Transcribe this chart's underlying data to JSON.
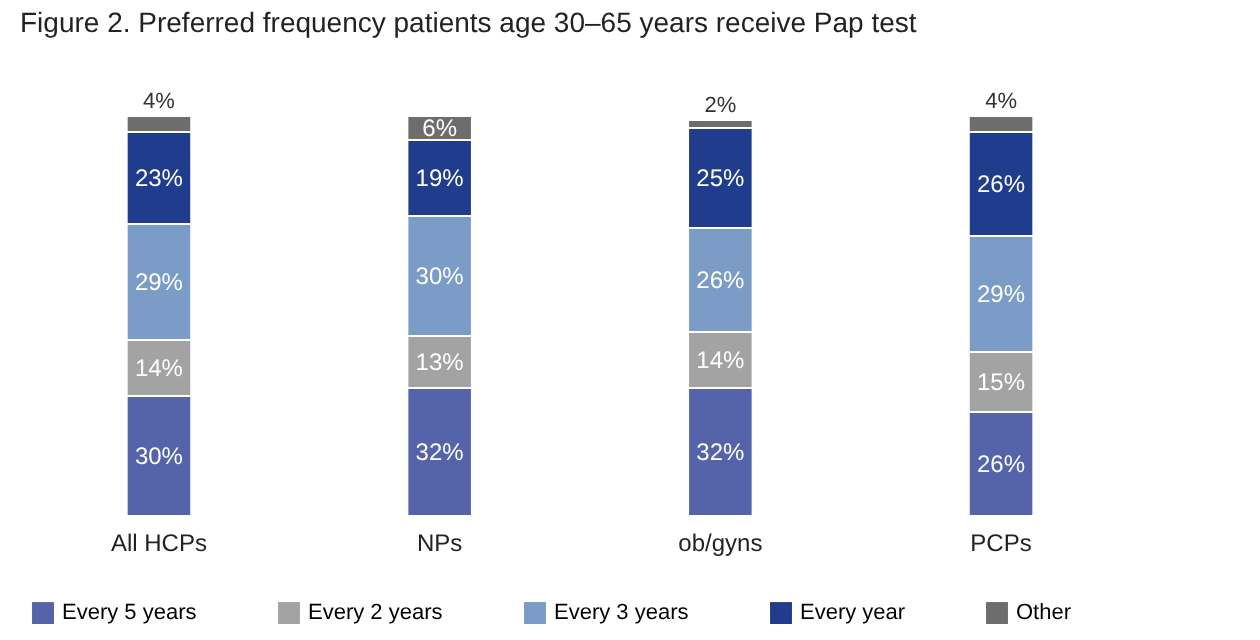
{
  "chart_data": {
    "type": "bar",
    "stacked": true,
    "title": "Figure 2. Preferred frequency patients age 30–65 years receive Pap test",
    "categories": [
      "All HCPs",
      "NPs",
      "ob/gyns",
      "PCPs"
    ],
    "series": [
      {
        "name": "Every 5 years",
        "color": "#5563ab",
        "values": [
          30,
          32,
          32,
          26
        ],
        "value_labels": [
          "30%",
          "32%",
          "32%",
          "26%"
        ]
      },
      {
        "name": "Every 2 years",
        "color": "#a3a3a3",
        "values": [
          14,
          13,
          14,
          15
        ],
        "value_labels": [
          "14%",
          "13%",
          "14%",
          "15%"
        ]
      },
      {
        "name": "Every 3 years",
        "color": "#7a9cc6",
        "values": [
          29,
          30,
          26,
          29
        ],
        "value_labels": [
          "29%",
          "30%",
          "26%",
          "29%"
        ]
      },
      {
        "name": "Every year",
        "color": "#1f3d8c",
        "values": [
          23,
          19,
          25,
          26
        ],
        "value_labels": [
          "23%",
          "19%",
          "25%",
          "26%"
        ]
      },
      {
        "name": "Other",
        "color": "#6d6d6d",
        "values": [
          4,
          6,
          2,
          4
        ],
        "value_labels": [
          "4%",
          "6%",
          "2%",
          "4%"
        ]
      }
    ],
    "legend": "bottom"
  }
}
